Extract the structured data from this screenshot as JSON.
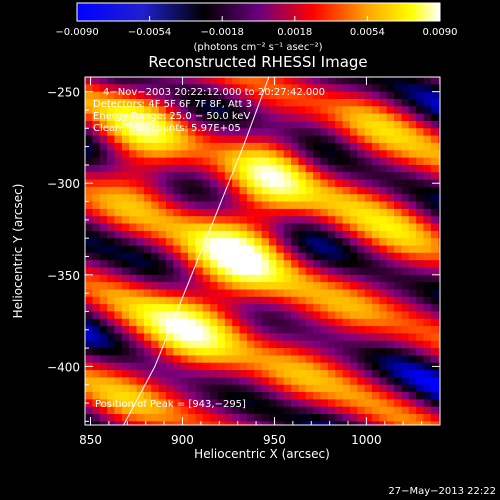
{
  "chart_data": {
    "type": "heatmap",
    "title": "Reconstructed RHESSI Image",
    "xlabel": "Heliocentric X (arcsec)",
    "ylabel": "Heliocentric Y (arcsec)",
    "xlim": [
      847,
      1040
    ],
    "ylim": [
      -432,
      -242
    ],
    "xticks": [
      850,
      900,
      950,
      1000
    ],
    "xtick_labels": [
      "850",
      "900",
      "950",
      "1000"
    ],
    "yticks": [
      -250,
      -300,
      -350,
      -400
    ],
    "ytick_labels": [
      "−250",
      "−300",
      "−350",
      "−400"
    ],
    "colorbar": {
      "range": [
        -0.009,
        0.009
      ],
      "ticks": [
        -0.009,
        -0.0054,
        -0.0018,
        0.0018,
        0.0054,
        0.009
      ],
      "tick_labels": [
        "−0.0090",
        "−0.0054",
        "−0.0018",
        "0.0018",
        "0.0054",
        "0.0090"
      ],
      "units": "(photons cm⁻² s⁻¹ asec⁻²)"
    },
    "annotations": [
      "4−Nov−2003 20:22:12.000 to 20:27:42.000",
      "Detectors: 4F 5F 6F 7F 8F, Att 3",
      "Energy Range: 25.0 − 50.0 keV",
      "Clean     Total counts: 5.97E+05"
    ],
    "peak_text": "Position of Peak = [943,−295]",
    "peak": [
      943,
      -295
    ],
    "limb_curve": [
      [
        868,
        -432
      ],
      [
        885,
        -400
      ],
      [
        901,
        -360
      ],
      [
        917,
        -320
      ],
      [
        933,
        -280
      ],
      [
        947,
        -242
      ]
    ],
    "sources": [
      {
        "x": 945,
        "y": -300,
        "amp": 1.0
      },
      {
        "x": 925,
        "y": -345,
        "amp": 0.95
      },
      {
        "x": 900,
        "y": -375,
        "amp": 0.85
      },
      {
        "x": 870,
        "y": -290,
        "amp": 0.7
      },
      {
        "x": 885,
        "y": -250,
        "amp": 0.6
      },
      {
        "x": 1000,
        "y": -280,
        "amp": 0.5
      },
      {
        "x": 1020,
        "y": -320,
        "amp": 0.45
      },
      {
        "x": 990,
        "y": -370,
        "amp": 0.4
      },
      {
        "x": 960,
        "y": -400,
        "amp": 0.45
      },
      {
        "x": 870,
        "y": -405,
        "amp": 0.5
      }
    ],
    "colormap": [
      "#0000ff",
      "#000000",
      "#800080",
      "#ff0000",
      "#ffa500",
      "#ffff00",
      "#ffffff"
    ],
    "grid": false
  },
  "footer": {
    "timestamp": "27−May−2013 22:22"
  }
}
